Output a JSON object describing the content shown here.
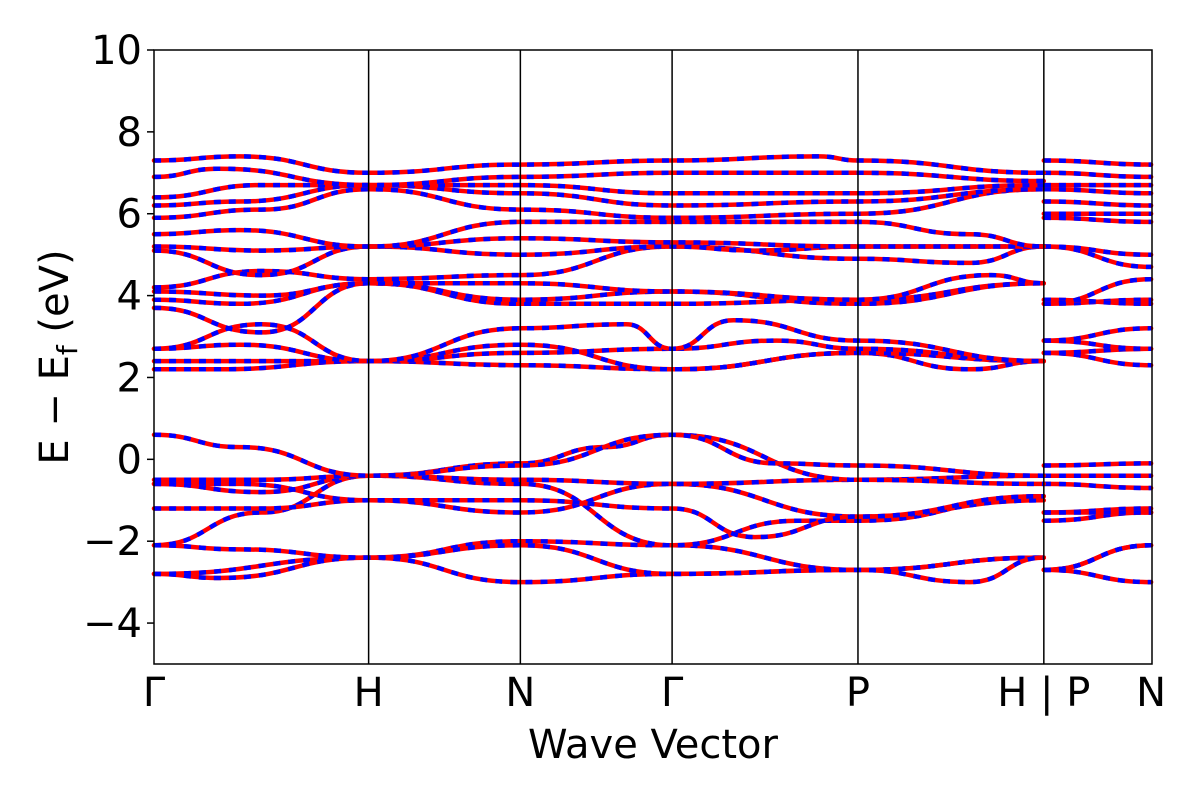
{
  "chart_data": {
    "type": "line",
    "xlabel": "Wave Vector",
    "ylabel_main": "E − E",
    "ylabel_sub": "f",
    "ylabel_unit": " (eV)",
    "ylim": [
      -5,
      10
    ],
    "yticks": [
      -4,
      -2,
      0,
      2,
      4,
      6,
      8,
      10
    ],
    "ytick_labels": [
      "−4",
      "−2",
      "0",
      "2",
      "4",
      "6",
      "8",
      "10"
    ],
    "xlim": [
      0,
      4.65
    ],
    "kpoints": [
      {
        "label": "Γ",
        "x": 0.0
      },
      {
        "label": "H",
        "x": 1.0
      },
      {
        "label": "N",
        "x": 1.707
      },
      {
        "label": "Γ",
        "x": 2.414
      },
      {
        "label": "P",
        "x": 3.28
      },
      {
        "label": "H | P",
        "x": 4.146
      },
      {
        "label": "N",
        "x": 4.646
      }
    ],
    "series_colors": {
      "spin_up": "#ff0000",
      "spin_down": "#0000ff"
    },
    "bands": [
      {
        "x": [
          0,
          1.0,
          1.707,
          2.414,
          3.28,
          4.146,
          4.146,
          4.646
        ],
        "y": [
          -2.8,
          -2.4,
          -3.0,
          -2.8,
          -2.7,
          -2.4,
          -2.7,
          -3.0
        ]
      },
      {
        "x": [
          0,
          0.3,
          1.0,
          1.707,
          2.414,
          3.28,
          4.146,
          4.146,
          4.646
        ],
        "y": [
          -2.8,
          -2.9,
          -2.4,
          -2.0,
          -2.1,
          -2.7,
          -2.4,
          -2.7,
          -2.1
        ]
      },
      {
        "x": [
          0,
          0.4,
          1.0,
          1.707,
          2.414,
          3.28,
          3.8,
          4.146,
          4.146,
          4.646
        ],
        "y": [
          -2.1,
          -2.2,
          -2.4,
          -2.1,
          -2.8,
          -2.7,
          -3.0,
          -2.4,
          -2.7,
          -2.1
        ]
      },
      {
        "x": [
          0,
          0.5,
          1.0,
          1.707,
          2.414,
          3.0,
          3.28,
          4.146,
          4.146,
          4.646
        ],
        "y": [
          -2.1,
          -1.3,
          -0.4,
          -0.6,
          -2.1,
          -1.5,
          -1.5,
          -0.9,
          -1.5,
          -1.3
        ]
      },
      {
        "x": [
          0,
          0.5,
          1.0,
          1.707,
          2.414,
          3.28,
          4.146,
          4.146,
          4.646
        ],
        "y": [
          -1.2,
          -1.2,
          -1.0,
          -1.3,
          -0.6,
          -1.4,
          -1.0,
          -1.3,
          -1.2
        ]
      },
      {
        "x": [
          0,
          0.4,
          1.0,
          1.707,
          2.414,
          2.8,
          3.28,
          4.146,
          4.146,
          4.646
        ],
        "y": [
          -0.6,
          -0.6,
          -1.0,
          -1.0,
          -1.2,
          -1.9,
          -1.4,
          -0.9,
          -1.3,
          -1.3
        ]
      },
      {
        "x": [
          0,
          0.5,
          1.0,
          1.707,
          2.414,
          3.28,
          4.146,
          4.146,
          4.646
        ],
        "y": [
          -0.6,
          -0.8,
          -0.4,
          -0.5,
          -0.6,
          -0.5,
          -0.4,
          -0.6,
          -0.7
        ]
      },
      {
        "x": [
          0,
          0.5,
          1.0,
          1.707,
          2.1,
          2.414,
          3.28,
          4.146,
          4.146,
          4.646
        ],
        "y": [
          -0.5,
          -0.5,
          -0.4,
          -0.1,
          0.3,
          0.6,
          -0.5,
          -0.6,
          -0.4,
          -0.4
        ]
      },
      {
        "x": [
          0,
          0.4,
          1.0,
          1.707,
          2.414,
          2.9,
          3.28,
          4.146,
          4.146,
          4.646
        ],
        "y": [
          0.6,
          0.3,
          -0.4,
          -0.15,
          0.6,
          -0.1,
          -0.15,
          -0.4,
          -0.15,
          -0.1
        ]
      },
      {
        "x": [
          0,
          0.3,
          1.0,
          1.707,
          2.414,
          3.28,
          3.8,
          4.146,
          4.146,
          4.646
        ],
        "y": [
          2.2,
          2.2,
          2.4,
          2.3,
          2.2,
          2.6,
          2.2,
          2.4,
          2.6,
          2.3
        ]
      },
      {
        "x": [
          0,
          0.4,
          1.0,
          1.707,
          2.414,
          3.28,
          4.146,
          4.146,
          4.646
        ],
        "y": [
          2.4,
          2.4,
          2.4,
          2.8,
          2.2,
          2.6,
          2.4,
          2.6,
          2.7
        ]
      },
      {
        "x": [
          0,
          0.4,
          1.0,
          1.707,
          2.414,
          2.9,
          3.28,
          4.146,
          4.146,
          4.646
        ],
        "y": [
          2.7,
          2.8,
          2.4,
          2.6,
          2.7,
          2.9,
          2.7,
          2.4,
          2.9,
          2.7
        ]
      },
      {
        "x": [
          0,
          0.5,
          1.0,
          1.707,
          2.2,
          2.414,
          2.7,
          3.28,
          4.146,
          4.146,
          4.646
        ],
        "y": [
          2.7,
          3.3,
          2.4,
          3.2,
          3.3,
          2.7,
          3.4,
          2.9,
          2.4,
          2.9,
          3.2
        ]
      },
      {
        "x": [
          0,
          0.5,
          1.0,
          1.707,
          2.414,
          3.28,
          4.146,
          4.146,
          4.646
        ],
        "y": [
          3.7,
          3.1,
          4.3,
          3.8,
          3.8,
          3.9,
          4.3,
          3.8,
          3.9
        ]
      },
      {
        "x": [
          0,
          0.4,
          1.0,
          1.707,
          2.414,
          3.28,
          4.146,
          4.146,
          4.646
        ],
        "y": [
          3.9,
          3.8,
          4.3,
          3.9,
          4.1,
          3.8,
          4.3,
          3.9,
          3.8
        ]
      },
      {
        "x": [
          0,
          0.5,
          1.0,
          1.707,
          2.414,
          3.28,
          3.9,
          4.146,
          4.146,
          4.646
        ],
        "y": [
          4.1,
          4.0,
          4.3,
          4.3,
          4.1,
          3.9,
          4.5,
          4.3,
          3.8,
          4.4
        ]
      },
      {
        "x": [
          0,
          0.5,
          1.0,
          1.707,
          2.414,
          3.28,
          3.8,
          4.146,
          4.146,
          4.646
        ],
        "y": [
          4.2,
          4.6,
          4.4,
          4.5,
          5.2,
          4.9,
          4.8,
          5.2,
          5.2,
          4.7
        ]
      },
      {
        "x": [
          0,
          0.5,
          1.0,
          1.707,
          2.414,
          2.8,
          3.28,
          4.146,
          4.146,
          4.646
        ],
        "y": [
          5.1,
          4.5,
          5.2,
          5.0,
          5.2,
          5.1,
          5.2,
          5.2,
          5.2,
          5.0
        ]
      },
      {
        "x": [
          0,
          0.5,
          1.0,
          1.707,
          2.414,
          3.28,
          4.146,
          4.146,
          4.646
        ],
        "y": [
          5.2,
          5.1,
          5.2,
          5.4,
          5.3,
          5.2,
          5.2,
          5.9,
          5.8
        ]
      },
      {
        "x": [
          0,
          0.4,
          1.0,
          1.707,
          2.414,
          3.28,
          3.8,
          4.146,
          4.146,
          4.646
        ],
        "y": [
          5.5,
          5.6,
          5.2,
          5.8,
          5.8,
          5.8,
          5.5,
          5.2,
          6.0,
          6.0
        ]
      },
      {
        "x": [
          0,
          0.5,
          1.0,
          1.707,
          2.414,
          3.28,
          4.146,
          4.146,
          4.646
        ],
        "y": [
          5.9,
          6.1,
          6.6,
          6.1,
          5.9,
          6.0,
          6.6,
          6.3,
          6.2
        ]
      },
      {
        "x": [
          0,
          0.4,
          1.0,
          1.707,
          2.414,
          3.28,
          4.146,
          4.146,
          4.646
        ],
        "y": [
          6.2,
          6.3,
          6.7,
          6.5,
          6.2,
          6.3,
          6.6,
          6.6,
          6.5
        ]
      },
      {
        "x": [
          0,
          0.5,
          1.0,
          1.707,
          2.414,
          3.28,
          4.146,
          4.146,
          4.646
        ],
        "y": [
          6.4,
          6.7,
          6.7,
          6.7,
          6.5,
          6.5,
          6.7,
          6.7,
          6.7
        ]
      },
      {
        "x": [
          0,
          0.3,
          1.0,
          1.707,
          2.414,
          3.28,
          4.146,
          4.146,
          4.646
        ],
        "y": [
          6.9,
          7.1,
          6.7,
          6.9,
          7.0,
          7.0,
          6.8,
          7.0,
          6.9
        ]
      },
      {
        "x": [
          0,
          0.4,
          1.0,
          1.707,
          2.414,
          3.1,
          3.28,
          4.146,
          4.146,
          4.646
        ],
        "y": [
          7.3,
          7.4,
          7.0,
          7.2,
          7.3,
          7.4,
          7.3,
          7.0,
          7.3,
          7.2
        ]
      }
    ]
  }
}
